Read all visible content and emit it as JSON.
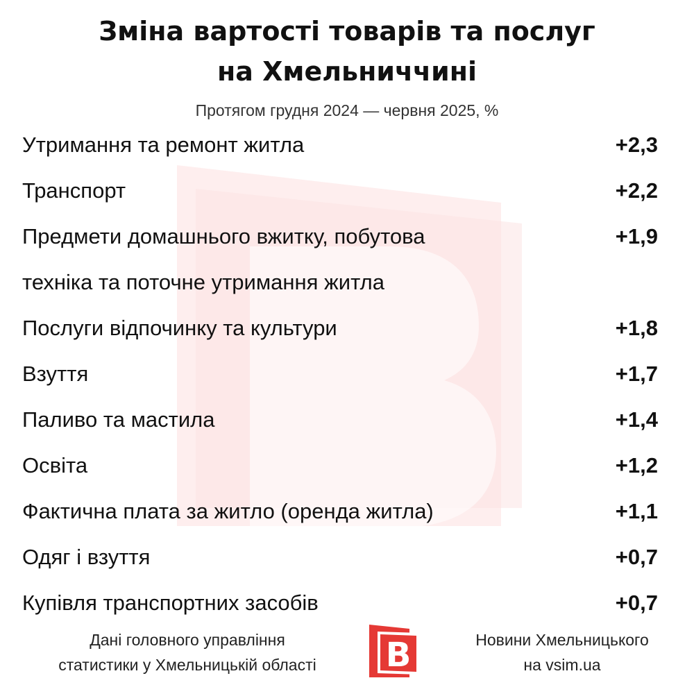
{
  "chart_data": {
    "type": "table",
    "title_lines": [
      "Зміна вартості товарів та послуг",
      "на Хмельниччині"
    ],
    "subtitle": "Протягом грудня 2024 — червня 2025, %",
    "rows": [
      {
        "label_lines": [
          "Утримання та ремонт житла"
        ],
        "value_text": "+2,3",
        "value": 2.3
      },
      {
        "label_lines": [
          "Транспорт"
        ],
        "value_text": "+2,2",
        "value": 2.2
      },
      {
        "label_lines": [
          "Предмети домашнього вжитку, побутова",
          "техніка та поточне утримання житла"
        ],
        "value_text": "+1,9",
        "value": 1.9
      },
      {
        "label_lines": [
          "Послуги відпочинку та культури"
        ],
        "value_text": "+1,8",
        "value": 1.8
      },
      {
        "label_lines": [
          "Взуття"
        ],
        "value_text": "+1,7",
        "value": 1.7
      },
      {
        "label_lines": [
          "Паливо та мастила"
        ],
        "value_text": "+1,4",
        "value": 1.4
      },
      {
        "label_lines": [
          "Освіта"
        ],
        "value_text": "+1,2",
        "value": 1.2
      },
      {
        "label_lines": [
          "Фактична плата за житло (оренда житла)"
        ],
        "value_text": "+1,1",
        "value": 1.1
      },
      {
        "label_lines": [
          "Одяг і взуття"
        ],
        "value_text": "+0,7",
        "value": 0.7
      },
      {
        "label_lines": [
          "Купівля транспортних засобів"
        ],
        "value_text": "+0,7",
        "value": 0.7
      }
    ]
  },
  "footer": {
    "source_lines": [
      "Дані головного управління",
      "статистики у Хмельницькій області"
    ],
    "brand_lines": [
      "Новини Хмельницького",
      "на vsim.ua"
    ],
    "logo_letter": "B",
    "logo_icon": "vsim-logo-icon",
    "watermark_icon": "vsim-watermark-icon"
  },
  "colors": {
    "brand_red": "#e53935",
    "watermark_tint": "#fde8e8"
  }
}
